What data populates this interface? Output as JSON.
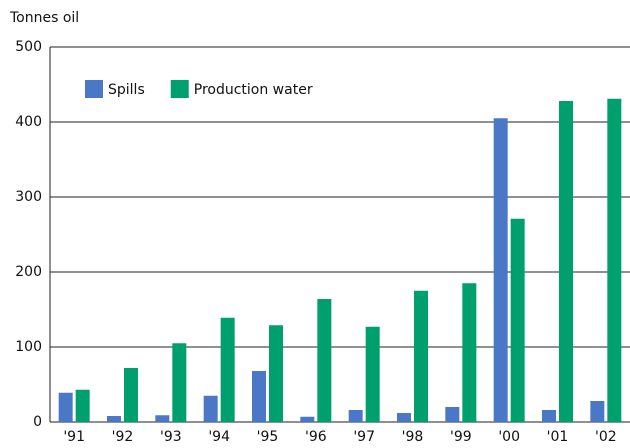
{
  "chart_data": {
    "type": "bar",
    "y_label": "Tonnes oil",
    "categories": [
      "'91",
      "'92",
      "'93",
      "'94",
      "'95",
      "'96",
      "'97",
      "'98",
      "'99",
      "'00",
      "'01",
      "'02"
    ],
    "series": [
      {
        "name": "Spills",
        "color": "#4a78c6",
        "values": [
          39,
          8,
          9,
          35,
          68,
          7,
          16,
          12,
          20,
          405,
          16,
          28
        ]
      },
      {
        "name": "Production water",
        "color": "#00a06e",
        "values": [
          43,
          72,
          105,
          139,
          129,
          164,
          127,
          175,
          185,
          271,
          428,
          431
        ]
      }
    ],
    "ylim": [
      0,
      500
    ],
    "yticks": [
      0,
      100,
      200,
      300,
      400,
      500
    ],
    "grid": true,
    "legend": "top-left"
  }
}
